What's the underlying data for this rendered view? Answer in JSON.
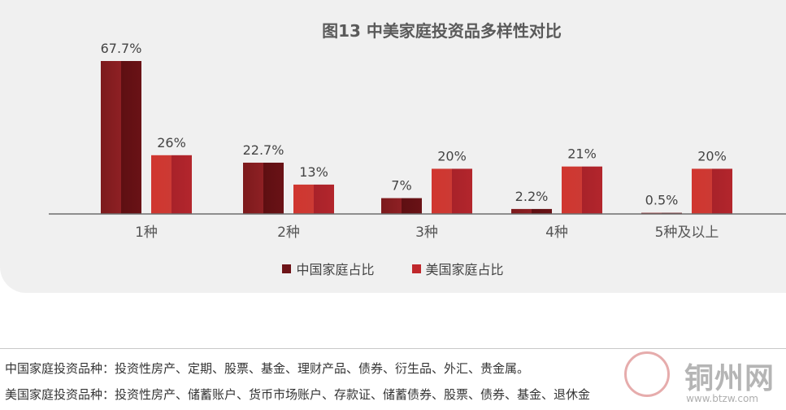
{
  "chart_data": {
    "type": "bar",
    "title": "图13 中美家庭投资品多样性对比",
    "categories": [
      "1种",
      "2种",
      "3种",
      "4种",
      "5种及以上"
    ],
    "series": [
      {
        "name": "中国家庭占比",
        "values": [
          67.7,
          22.7,
          7,
          2.2,
          0.5
        ],
        "labels": [
          "67.7%",
          "22.7%",
          "7%",
          "2.2%",
          "0.5%"
        ],
        "color": "#6e1418"
      },
      {
        "name": "美国家庭占比",
        "values": [
          26,
          13,
          20,
          21,
          20
        ],
        "labels": [
          "26%",
          "13%",
          "20%",
          "21%",
          "20%"
        ],
        "color": "#c0282c"
      }
    ],
    "ylim": [
      0,
      67.7
    ],
    "grid": false,
    "legend": "bottom"
  },
  "notes": {
    "china": "中国家庭投资品种：投资性房产、定期、股票、基金、理财产品、债券、衍生品、外汇、贵金属。",
    "usa": "美国家庭投资品种：投资性房产、储蓄账户、货币市场账户、存款证、储蓄债券、股票、债券、基金、退休金"
  },
  "watermark": {
    "text": "铜州网",
    "url": "www.btzw.com"
  }
}
